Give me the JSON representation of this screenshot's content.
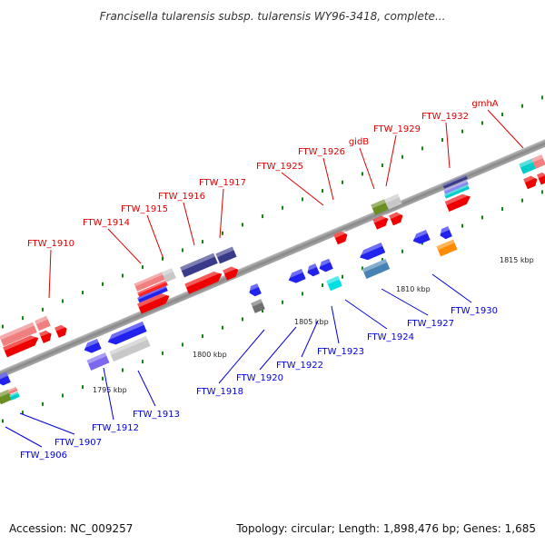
{
  "title": "Francisella tularensis subsp. tularensis WY96-3418, complete...",
  "footer": {
    "accession": "Accession: NC_009257",
    "summary": "Topology: circular; Length: 1,898,476 bp; Genes: 1,685"
  },
  "colors": {
    "forward_label": "#dd0000",
    "reverse_label": "#0000dd",
    "backbone": "#909090",
    "tick": "#118811"
  },
  "scale_labels": [
    "1795 kbp",
    "1800 kbp",
    "1805 kbp",
    "1810 kbp",
    "1815 kbp"
  ],
  "labels_forward": [
    "FTW_1910",
    "FTW_1914",
    "FTW_1915",
    "FTW_1916",
    "FTW_1917",
    "FTW_1925",
    "FTW_1926",
    "gidB",
    "FTW_1929",
    "FTW_1932",
    "gmhA"
  ],
  "labels_reverse": [
    "FTW_1906",
    "FTW_1907",
    "FTW_1912",
    "FTW_1913",
    "FTW_1918",
    "FTW_1920",
    "FTW_1922",
    "FTW_1923",
    "FTW_1924",
    "FTW_1927",
    "FTW_1930"
  ]
}
